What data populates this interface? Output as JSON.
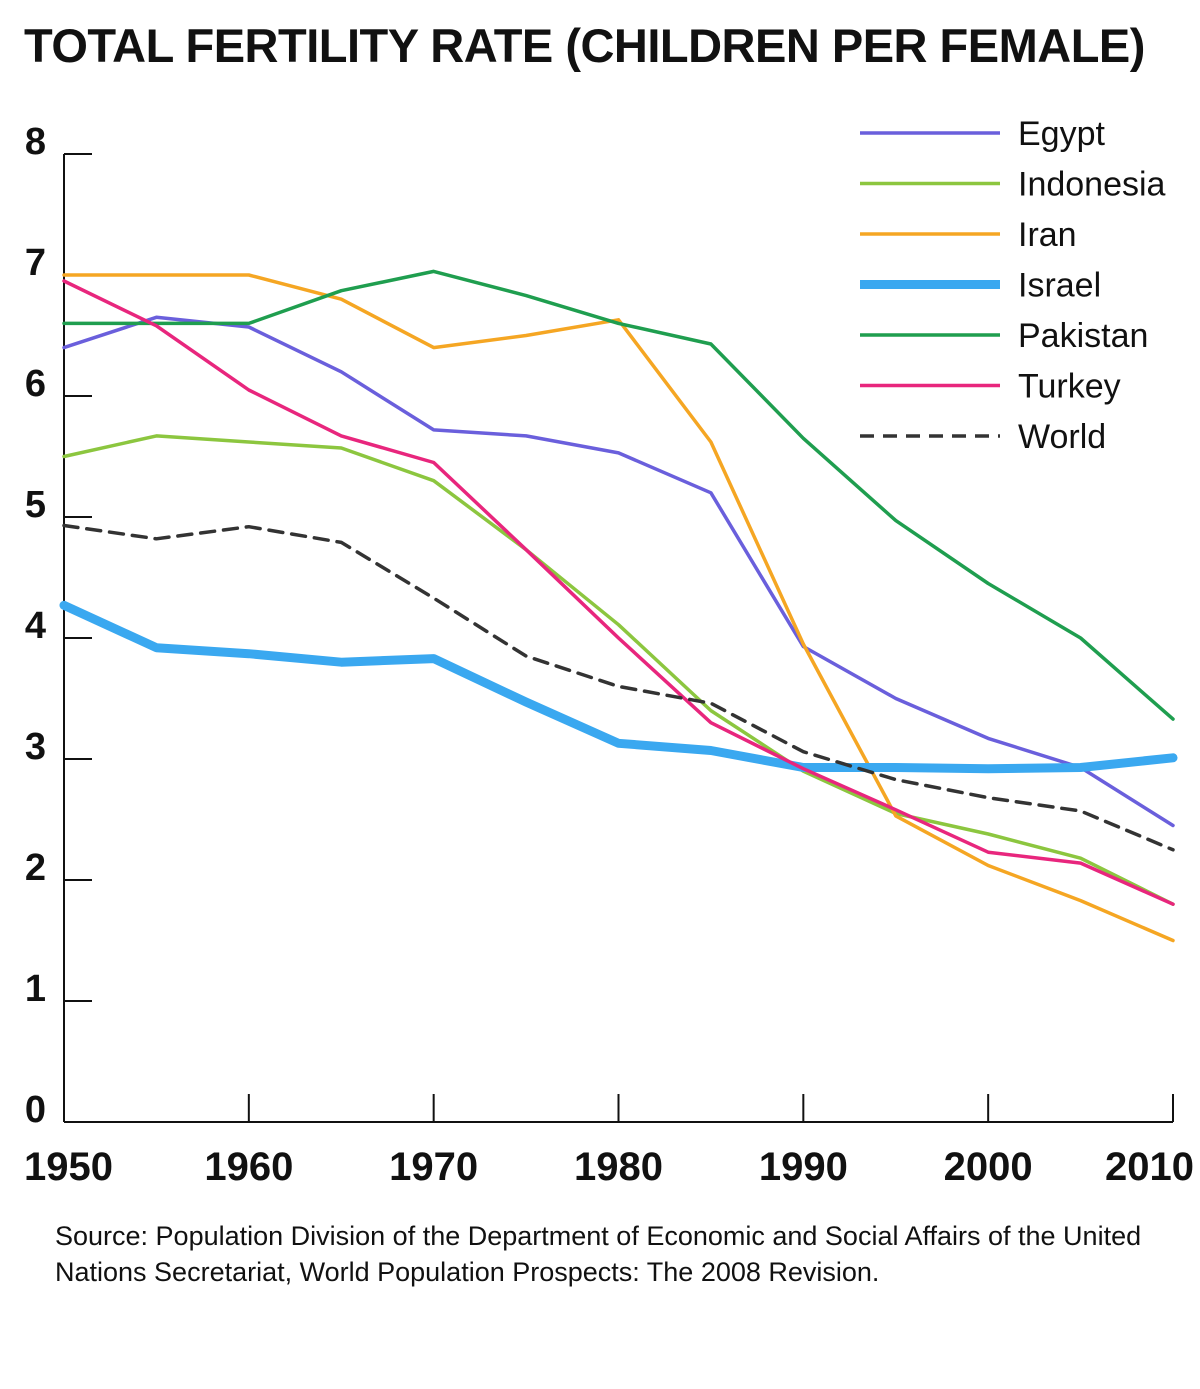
{
  "chart_data": {
    "type": "line",
    "title": "TOTAL FERTILITY RATE (CHILDREN PER FEMALE)",
    "xlabel": "",
    "ylabel": "",
    "x": [
      1950,
      1955,
      1960,
      1965,
      1970,
      1975,
      1980,
      1985,
      1990,
      1995,
      2000,
      2005,
      2010
    ],
    "x_ticks": [
      "1950",
      "1960",
      "1970",
      "1980",
      "1990",
      "2000",
      "2010"
    ],
    "y_ticks": [
      "0",
      "1",
      "2",
      "3",
      "4",
      "5",
      "6",
      "7",
      "8"
    ],
    "xlim": [
      1950,
      2010
    ],
    "ylim": [
      0,
      8
    ],
    "grid": false,
    "legend_position": "top-right",
    "series": [
      {
        "name": "Egypt",
        "color": "#6a5fdc",
        "style": "solid",
        "weight": "normal",
        "values": [
          6.4,
          6.65,
          6.57,
          6.2,
          5.72,
          5.67,
          5.53,
          5.2,
          3.93,
          3.5,
          3.17,
          2.93,
          2.45
        ]
      },
      {
        "name": "Indonesia",
        "color": "#8cc63f",
        "style": "solid",
        "weight": "normal",
        "values": [
          5.5,
          5.67,
          5.62,
          5.57,
          5.3,
          4.73,
          4.11,
          3.4,
          2.9,
          2.55,
          2.38,
          2.18,
          1.8
        ]
      },
      {
        "name": "Iran",
        "color": "#f5a623",
        "style": "solid",
        "weight": "normal",
        "values": [
          7.0,
          7.0,
          7.0,
          6.8,
          6.4,
          6.5,
          6.63,
          5.62,
          3.95,
          2.53,
          2.12,
          1.83,
          1.5
        ]
      },
      {
        "name": "Israel",
        "color": "#3aa8f0",
        "style": "solid",
        "weight": "bold",
        "values": [
          4.27,
          3.92,
          3.87,
          3.8,
          3.83,
          3.47,
          3.13,
          3.07,
          2.93,
          2.93,
          2.92,
          2.93,
          3.01
        ]
      },
      {
        "name": "Pakistan",
        "color": "#1f9e4f",
        "style": "solid",
        "weight": "normal",
        "values": [
          6.6,
          6.6,
          6.6,
          6.87,
          7.03,
          6.83,
          6.6,
          6.43,
          5.65,
          4.97,
          4.45,
          4.0,
          3.33
        ]
      },
      {
        "name": "Turkey",
        "color": "#e8267d",
        "style": "solid",
        "weight": "normal",
        "values": [
          6.95,
          6.58,
          6.05,
          5.67,
          5.45,
          4.73,
          4.0,
          3.3,
          2.92,
          2.58,
          2.23,
          2.14,
          1.8
        ]
      },
      {
        "name": "World",
        "color": "#333333",
        "style": "dashed",
        "weight": "normal",
        "values": [
          4.93,
          4.82,
          4.92,
          4.79,
          4.33,
          3.85,
          3.6,
          3.46,
          3.06,
          2.83,
          2.68,
          2.57,
          2.25
        ]
      }
    ]
  },
  "source": "Source: Population Division of the Department of Economic and Social Affairs of the United Nations Secretariat, World Population Prospects: The 2008 Revision."
}
